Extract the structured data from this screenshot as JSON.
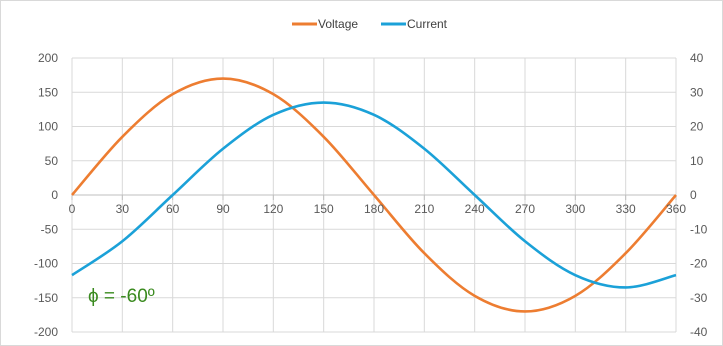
{
  "chart_data": {
    "type": "line",
    "legend_position": "top",
    "grid": true,
    "x": [
      0,
      30,
      60,
      90,
      120,
      150,
      180,
      210,
      240,
      270,
      300,
      330,
      360
    ],
    "x_tick_labels": [
      "0",
      "30",
      "60",
      "90",
      "120",
      "150",
      "180",
      "210",
      "240",
      "270",
      "300",
      "330",
      "360"
    ],
    "xlim": [
      0,
      360
    ],
    "ylim_left": [
      -200,
      200
    ],
    "y_left_ticks": [
      "200",
      "150",
      "100",
      "50",
      "0",
      "-50",
      "-100",
      "-150",
      "-200"
    ],
    "ylim_right": [
      -40,
      40
    ],
    "y_right_ticks": [
      "40",
      "30",
      "20",
      "10",
      "0",
      "-10",
      "-20",
      "-30",
      "-40"
    ],
    "series": [
      {
        "name": "Voltage",
        "axis": "left",
        "color": "#ED7D31",
        "values": [
          0,
          85,
          147.2,
          170,
          147.2,
          85,
          0,
          -85,
          -147.2,
          -170,
          -147.2,
          -85,
          0
        ]
      },
      {
        "name": "Current",
        "axis": "right",
        "color": "#1BA1D8",
        "values": [
          -23.4,
          -13.5,
          0,
          13.5,
          23.4,
          27,
          23.4,
          13.5,
          0,
          -13.5,
          -23.4,
          -27,
          -23.4
        ]
      }
    ],
    "annotation": "ϕ = -60º",
    "annotation_color": "#3a8a1f"
  }
}
